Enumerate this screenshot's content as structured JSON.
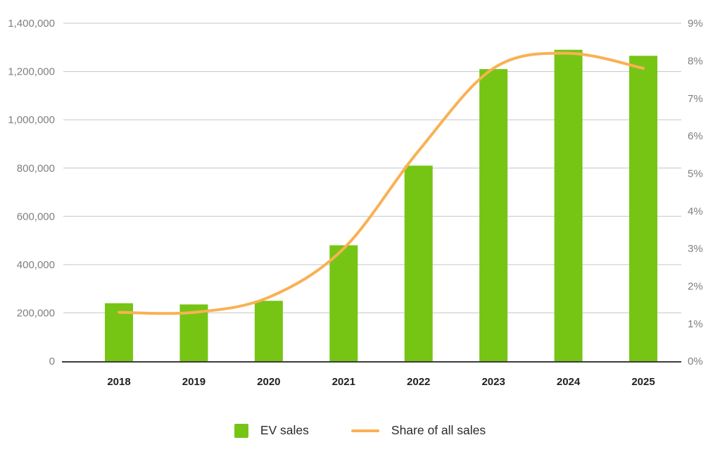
{
  "chart_data": {
    "type": "bar+line",
    "categories": [
      "2018",
      "2019",
      "2020",
      "2021",
      "2022",
      "2023",
      "2024",
      "2025"
    ],
    "series": [
      {
        "name": "EV sales",
        "type": "bar",
        "axis": "left",
        "color": "#76C514",
        "values": [
          240000,
          235000,
          250000,
          480000,
          810000,
          1210000,
          1290000,
          1265000
        ]
      },
      {
        "name": "Share of all sales",
        "type": "line",
        "axis": "right",
        "unit": "%",
        "color": "#F9B153",
        "values": [
          1.3,
          1.3,
          1.7,
          3.0,
          5.6,
          7.8,
          8.2,
          7.8
        ]
      }
    ],
    "left_axis": {
      "min": 0,
      "max": 1400000,
      "step": 200000,
      "ticks": [
        "0",
        "200,000",
        "400,000",
        "600,000",
        "800,000",
        "1,000,000",
        "1,200,000",
        "1,400,000"
      ]
    },
    "right_axis": {
      "min": 0,
      "max": 9,
      "step": 1,
      "ticks": [
        "0%",
        "1%",
        "2%",
        "3%",
        "4%",
        "5%",
        "6%",
        "7%",
        "8%",
        "9%"
      ]
    },
    "grid": "horizontal lines at left-axis ticks",
    "legend_position": "bottom"
  },
  "legend": {
    "items": [
      {
        "label": "EV sales",
        "swatch": "square",
        "color": "#76C514"
      },
      {
        "label": "Share of all sales",
        "swatch": "line",
        "color": "#F9B153"
      }
    ]
  },
  "styles": {
    "background": "#FFFFFF",
    "grid_color": "#C6C6C6",
    "axis_line_color": "#3C3C3C",
    "tick_text_color": "#7F7F7F",
    "year_text_color": "#1F1F1F"
  }
}
